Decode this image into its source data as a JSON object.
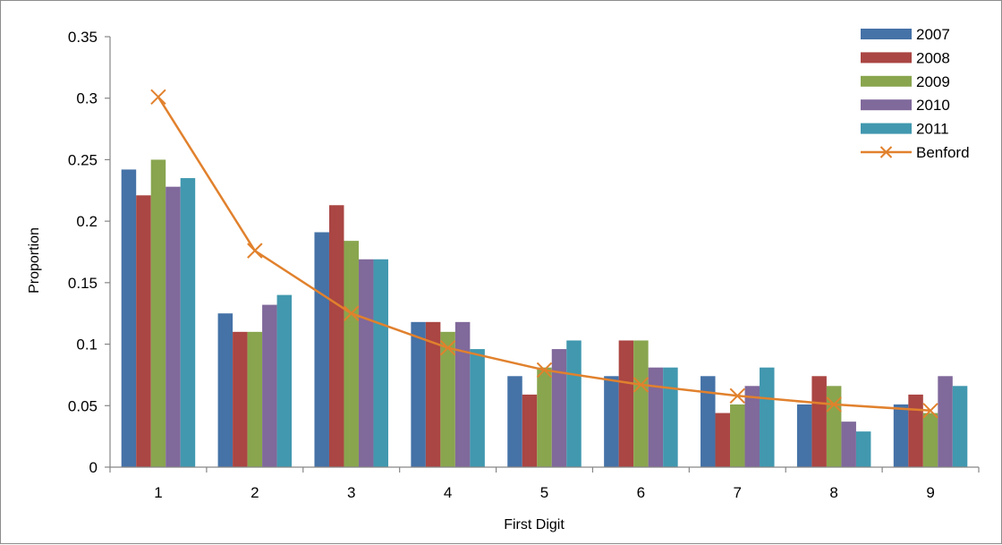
{
  "chart_data": {
    "type": "bar",
    "title": "",
    "xlabel": "First Digit",
    "ylabel": "Proportion",
    "categories": [
      "1",
      "2",
      "3",
      "4",
      "5",
      "6",
      "7",
      "8",
      "9"
    ],
    "ylim": [
      0,
      0.35
    ],
    "yticks": [
      "0",
      "0.05",
      "0.1",
      "0.15",
      "0.2",
      "0.25",
      "0.3",
      "0.35"
    ],
    "ytick_values": [
      0,
      0.05,
      0.1,
      0.15,
      0.2,
      0.25,
      0.3,
      0.35
    ],
    "grid": false,
    "legend_position": "top-right",
    "series": [
      {
        "name": "2007",
        "type": "bar",
        "color": "#4572A7",
        "values": [
          0.242,
          0.125,
          0.191,
          0.118,
          0.074,
          0.074,
          0.074,
          0.051,
          0.051
        ]
      },
      {
        "name": "2008",
        "type": "bar",
        "color": "#AA4643",
        "values": [
          0.221,
          0.11,
          0.213,
          0.118,
          0.059,
          0.103,
          0.044,
          0.074,
          0.059
        ]
      },
      {
        "name": "2009",
        "type": "bar",
        "color": "#89A54E",
        "values": [
          0.25,
          0.11,
          0.184,
          0.11,
          0.081,
          0.103,
          0.051,
          0.066,
          0.044
        ]
      },
      {
        "name": "2010",
        "type": "bar",
        "color": "#80699B",
        "values": [
          0.228,
          0.132,
          0.169,
          0.118,
          0.096,
          0.081,
          0.066,
          0.037,
          0.074
        ]
      },
      {
        "name": "2011",
        "type": "bar",
        "color": "#4198AF",
        "values": [
          0.235,
          0.14,
          0.169,
          0.096,
          0.103,
          0.081,
          0.081,
          0.029,
          0.066
        ]
      },
      {
        "name": "Benford",
        "type": "line",
        "marker": "x",
        "color": "#E1812D",
        "values": [
          0.301,
          0.176,
          0.125,
          0.097,
          0.079,
          0.067,
          0.058,
          0.051,
          0.046
        ]
      }
    ]
  }
}
